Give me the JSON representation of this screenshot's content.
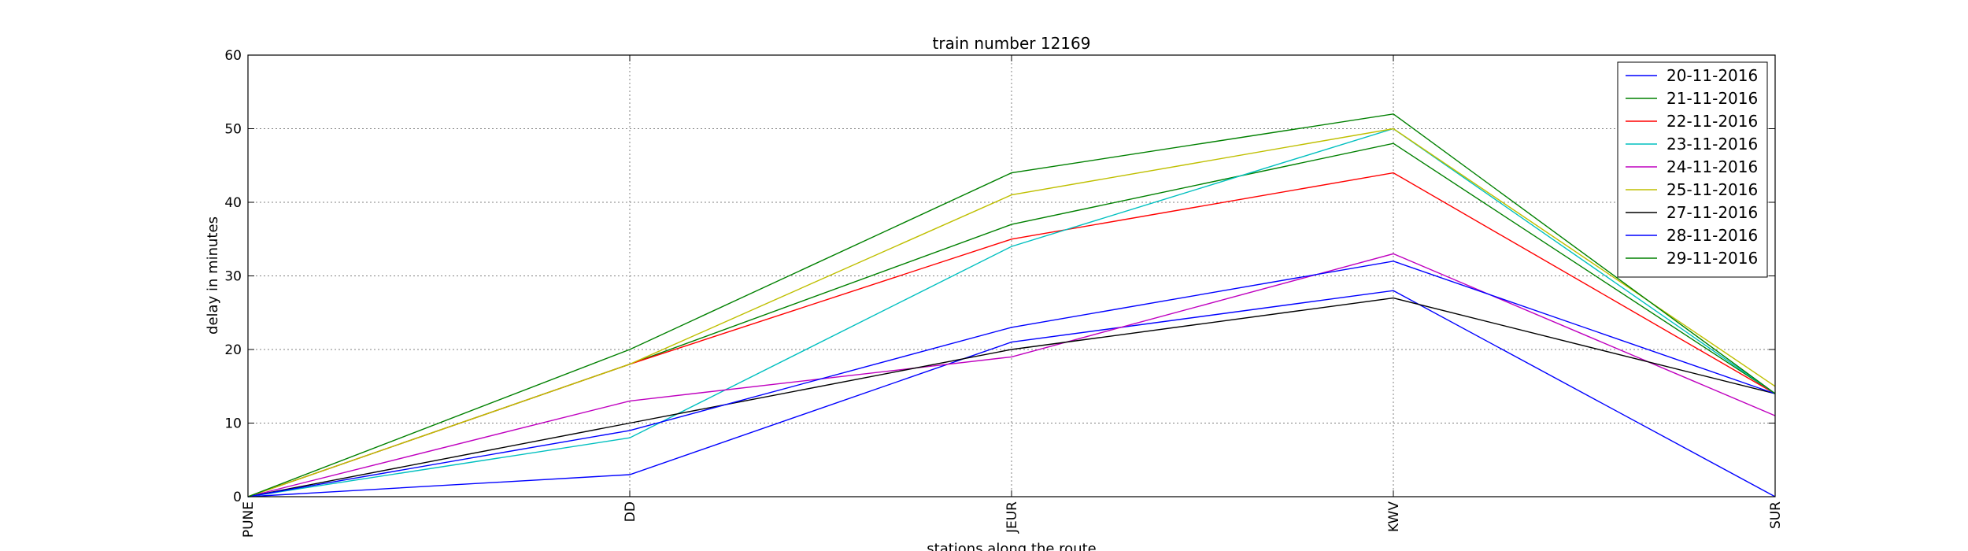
{
  "chart_data": {
    "type": "line",
    "title": "train number 12169",
    "xlabel": "stations along the route",
    "ylabel": "delay in minutes",
    "categories": [
      "PUNE",
      "DD",
      "JEUR",
      "KWV",
      "SUR"
    ],
    "ylim": [
      0,
      60
    ],
    "yticks": [
      0,
      10,
      20,
      30,
      40,
      50,
      60
    ],
    "grid": true,
    "legend_position": "top-right",
    "series": [
      {
        "name": "20-11-2016",
        "color": "#0000ff",
        "values": [
          0,
          3,
          21,
          28,
          0
        ]
      },
      {
        "name": "21-11-2016",
        "color": "#008000",
        "values": [
          0,
          18,
          37,
          48,
          14
        ]
      },
      {
        "name": "22-11-2016",
        "color": "#ff0000",
        "values": [
          0,
          18,
          35,
          44,
          14
        ]
      },
      {
        "name": "23-11-2016",
        "color": "#00bfbf",
        "values": [
          0,
          8,
          34,
          50,
          14
        ]
      },
      {
        "name": "24-11-2016",
        "color": "#bf00bf",
        "values": [
          0,
          13,
          19,
          33,
          11
        ]
      },
      {
        "name": "25-11-2016",
        "color": "#bfbf00",
        "values": [
          0,
          18,
          41,
          50,
          15
        ]
      },
      {
        "name": "27-11-2016",
        "color": "#000000",
        "values": [
          0,
          10,
          20,
          27,
          14
        ]
      },
      {
        "name": "28-11-2016",
        "color": "#0000ff",
        "values": [
          0,
          9,
          23,
          32,
          14
        ]
      },
      {
        "name": "29-11-2016",
        "color": "#008000",
        "values": [
          0,
          20,
          44,
          52,
          14
        ]
      }
    ]
  }
}
